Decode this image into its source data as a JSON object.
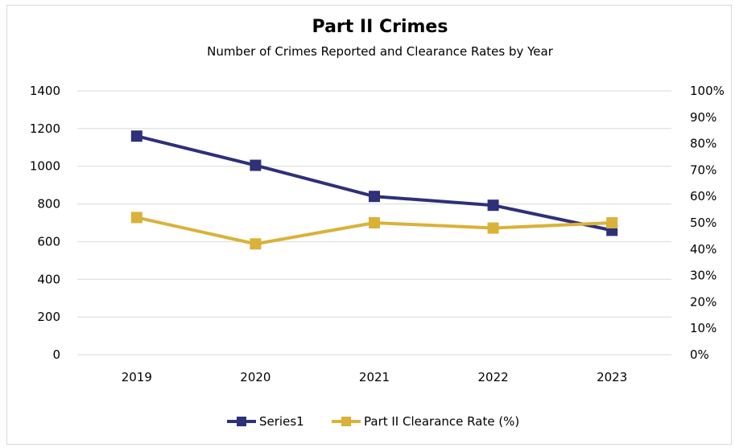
{
  "chart_data": {
    "type": "line",
    "title": "Part II Crimes",
    "subtitle": "Number of Crimes Reported and Clearance Rates by Year",
    "categories": [
      "2019",
      "2020",
      "2021",
      "2022",
      "2023"
    ],
    "y_left": {
      "ylim": [
        0,
        1400
      ],
      "ticks": [
        "0",
        "200",
        "400",
        "600",
        "800",
        "1000",
        "1200",
        "1400"
      ]
    },
    "y_right": {
      "ylim": [
        0,
        100
      ],
      "ticks": [
        "0%",
        "10%",
        "20%",
        "30%",
        "40%",
        "50%",
        "60%",
        "70%",
        "80%",
        "90%",
        "100%"
      ]
    },
    "grid": true,
    "legend_position": "bottom",
    "series": [
      {
        "name": "Series1",
        "axis": "left",
        "color": "#2e3078",
        "values": [
          1160,
          1005,
          840,
          793,
          660
        ]
      },
      {
        "name": "Part II Clearance Rate (%)",
        "axis": "right",
        "color": "#d9b23a",
        "values": [
          52,
          42,
          50,
          48,
          50
        ]
      }
    ]
  }
}
